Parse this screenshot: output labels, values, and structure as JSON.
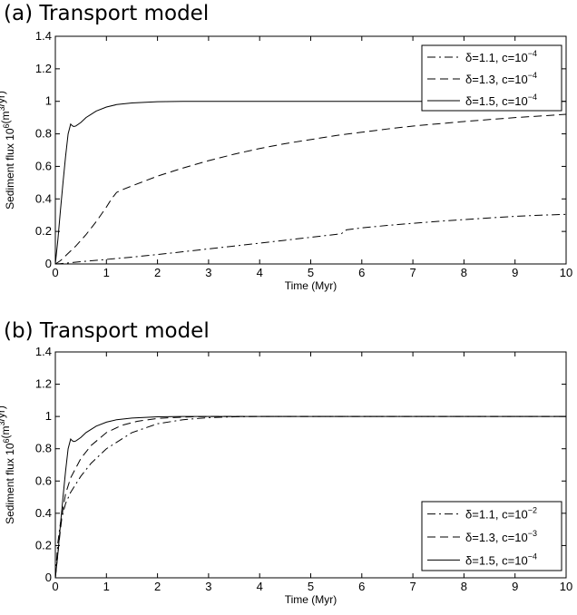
{
  "chart_data": [
    {
      "type": "line",
      "title": "(a) Transport model",
      "xlabel": "Time (Myr)",
      "ylabel": {
        "base": "Sediment flux 10",
        "exp": "6",
        "mid": "(m",
        "exp2": "3",
        "end": "/yr)"
      },
      "xlim": [
        0,
        10
      ],
      "ylim": [
        0,
        1.4
      ],
      "xticks": [
        "0",
        "1",
        "2",
        "3",
        "4",
        "5",
        "6",
        "7",
        "8",
        "9",
        "10"
      ],
      "yticks": [
        "0",
        "0.2",
        "0.4",
        "0.6",
        "0.8",
        "1",
        "1.2",
        "1.4"
      ],
      "grid": false,
      "legend_position": "top-right",
      "series": [
        {
          "name": {
            "delta": "δ=1.1, c=10",
            "exp": "−4"
          },
          "style": "dashdot",
          "x": [
            0,
            0.1,
            0.3,
            0.5,
            0.8,
            1.0,
            1.5,
            2,
            2.5,
            3,
            3.5,
            4,
            4.5,
            5,
            5.5,
            5.6,
            5.65,
            5.7,
            6,
            6.5,
            7,
            7.5,
            8,
            8.5,
            9,
            9.5,
            10
          ],
          "y": [
            0,
            0.002,
            0.008,
            0.014,
            0.022,
            0.028,
            0.042,
            0.058,
            0.075,
            0.093,
            0.11,
            0.128,
            0.146,
            0.164,
            0.182,
            0.186,
            0.198,
            0.21,
            0.222,
            0.237,
            0.25,
            0.262,
            0.273,
            0.283,
            0.293,
            0.3,
            0.305
          ]
        },
        {
          "name": {
            "delta": "δ=1.3, c=10",
            "exp": "−4"
          },
          "style": "dashed",
          "x": [
            0,
            0.1,
            0.2,
            0.4,
            0.6,
            0.8,
            1.0,
            1.1,
            1.2,
            1.3,
            1.5,
            2,
            2.5,
            3,
            3.5,
            4,
            4.5,
            5,
            5.5,
            6,
            6.5,
            7,
            7.5,
            8,
            8.5,
            9,
            9.5,
            10
          ],
          "y": [
            0,
            0.02,
            0.05,
            0.11,
            0.18,
            0.26,
            0.35,
            0.4,
            0.44,
            0.455,
            0.48,
            0.54,
            0.59,
            0.635,
            0.675,
            0.71,
            0.74,
            0.765,
            0.79,
            0.81,
            0.83,
            0.848,
            0.862,
            0.876,
            0.888,
            0.9,
            0.91,
            0.92
          ]
        },
        {
          "name": {
            "delta": "δ=1.5, c=10",
            "exp": "−4"
          },
          "style": "solid",
          "x": [
            0,
            0.05,
            0.1,
            0.15,
            0.2,
            0.25,
            0.3,
            0.33,
            0.36,
            0.4,
            0.5,
            0.6,
            0.8,
            1.0,
            1.2,
            1.5,
            2,
            2.5,
            3,
            4,
            5,
            6,
            7,
            8,
            9,
            10
          ],
          "y": [
            0,
            0.15,
            0.33,
            0.5,
            0.66,
            0.8,
            0.86,
            0.85,
            0.845,
            0.848,
            0.87,
            0.9,
            0.94,
            0.965,
            0.98,
            0.99,
            0.998,
            1.0,
            1.0,
            1.0,
            1.0,
            1.0,
            1.0,
            1.0,
            1.0,
            1.0
          ]
        }
      ]
    },
    {
      "type": "line",
      "title": "(b) Transport model",
      "xlabel": "Time (Myr)",
      "ylabel": {
        "base": "Sediment flux 10",
        "exp": "6",
        "mid": "(m",
        "exp2": "3",
        "end": "/yr)"
      },
      "xlim": [
        0,
        10
      ],
      "ylim": [
        0,
        1.4
      ],
      "xticks": [
        "0",
        "1",
        "2",
        "3",
        "4",
        "5",
        "6",
        "7",
        "8",
        "9",
        "10"
      ],
      "yticks": [
        "0",
        "0.2",
        "0.4",
        "0.6",
        "0.8",
        "1",
        "1.2",
        "1.4"
      ],
      "grid": false,
      "legend_position": "bottom-right",
      "series": [
        {
          "name": {
            "delta": "δ=1.1, c=10",
            "exp": "−2"
          },
          "style": "dashdot",
          "x": [
            0,
            0.05,
            0.1,
            0.2,
            0.3,
            0.5,
            0.7,
            1.0,
            1.5,
            2,
            2.5,
            3,
            3.5,
            4,
            5,
            6,
            7,
            8,
            9,
            10
          ],
          "y": [
            0,
            0.22,
            0.34,
            0.46,
            0.53,
            0.63,
            0.71,
            0.8,
            0.9,
            0.955,
            0.98,
            0.993,
            0.998,
            1.0,
            1.0,
            1.0,
            1.0,
            1.0,
            1.0,
            1.0
          ]
        },
        {
          "name": {
            "delta": "δ=1.3, c=10",
            "exp": "−3"
          },
          "style": "dashed",
          "x": [
            0,
            0.05,
            0.1,
            0.15,
            0.2,
            0.3,
            0.5,
            0.7,
            1.0,
            1.3,
            1.6,
            2,
            2.5,
            3,
            4,
            5,
            6,
            7,
            8,
            9,
            10
          ],
          "y": [
            0,
            0.15,
            0.3,
            0.43,
            0.52,
            0.62,
            0.74,
            0.82,
            0.9,
            0.945,
            0.97,
            0.988,
            0.996,
            1.0,
            1.0,
            1.0,
            1.0,
            1.0,
            1.0,
            1.0,
            1.0
          ]
        },
        {
          "name": {
            "delta": "δ=1.5, c=10",
            "exp": "−4"
          },
          "style": "solid",
          "x": [
            0,
            0.05,
            0.1,
            0.15,
            0.2,
            0.25,
            0.3,
            0.33,
            0.36,
            0.4,
            0.5,
            0.6,
            0.8,
            1.0,
            1.2,
            1.5,
            2,
            2.5,
            3,
            4,
            5,
            6,
            7,
            8,
            9,
            10
          ],
          "y": [
            0,
            0.15,
            0.33,
            0.5,
            0.66,
            0.8,
            0.86,
            0.85,
            0.845,
            0.848,
            0.87,
            0.9,
            0.94,
            0.965,
            0.98,
            0.99,
            0.998,
            1.0,
            1.0,
            1.0,
            1.0,
            1.0,
            1.0,
            1.0,
            1.0,
            1.0
          ]
        }
      ]
    }
  ]
}
